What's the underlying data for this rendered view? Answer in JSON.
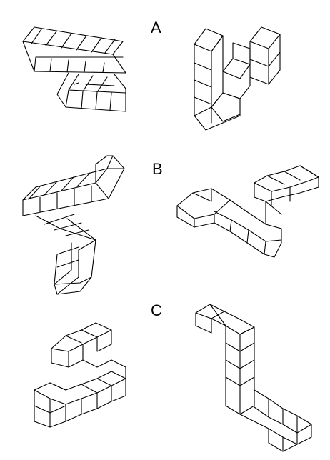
{
  "rows": [
    {
      "label": "A",
      "pair_index": 1
    },
    {
      "label": "B",
      "pair_index": 2
    },
    {
      "label": "C",
      "pair_index": 3
    }
  ],
  "style": {
    "line_color": "#000000",
    "background": "#ffffff"
  }
}
